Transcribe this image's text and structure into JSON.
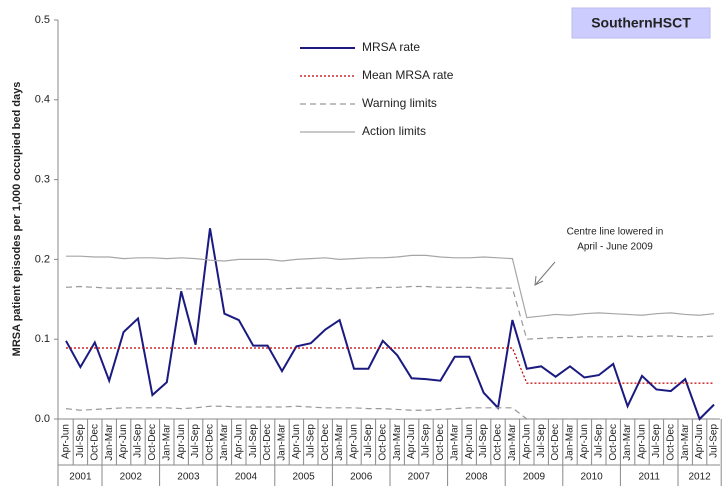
{
  "chart_data": {
    "type": "line",
    "title": "SouthernHSCT",
    "y_label": "MRSA patient episodes per 1,000 occupied bed days",
    "annotation": [
      "Centre line lowered in",
      "April - June 2009"
    ],
    "categories": [
      "Apr-Jun",
      "Jul-Sep",
      "Oct-Dec",
      "Jan-Mar",
      "Apr-Jun",
      "Jul-Sep",
      "Oct-Dec",
      "Jan-Mar",
      "Apr-Jun",
      "Jul-Sep",
      "Oct-Dec",
      "Jan-Mar",
      "Apr-Jun",
      "Jul-Sep",
      "Oct-Dec",
      "Jan-Mar",
      "Apr-Jun",
      "Jul-Sep",
      "Oct-Dec",
      "Jan-Mar",
      "Apr-Jun",
      "Jul-Sep",
      "Oct-Dec",
      "Jan-Mar",
      "Apr-Jun",
      "Jul-Sep",
      "Oct-Dec",
      "Jan-Mar",
      "Apr-Jun",
      "Jul-Sep",
      "Oct-Dec",
      "Jan-Mar",
      "Apr-Jun",
      "Jul-Sep",
      "Oct-Dec",
      "Jan-Mar",
      "Apr-Jun",
      "Jul-Sep",
      "Oct-Dec",
      "Jan-Mar",
      "Apr-Jun",
      "Jul-Sep",
      "Oct-Dec",
      "Jan-Mar",
      "Apr-Jun",
      "Jul-Sep"
    ],
    "category_years": [
      "2001",
      "2001",
      "2001",
      "2002",
      "2002",
      "2002",
      "2002",
      "2003",
      "2003",
      "2003",
      "2003",
      "2004",
      "2004",
      "2004",
      "2004",
      "2005",
      "2005",
      "2005",
      "2005",
      "2006",
      "2006",
      "2006",
      "2006",
      "2007",
      "2007",
      "2007",
      "2007",
      "2008",
      "2008",
      "2008",
      "2008",
      "2009",
      "2009",
      "2009",
      "2009",
      "2010",
      "2010",
      "2010",
      "2010",
      "2011",
      "2011",
      "2011",
      "2011",
      "2012",
      "2012",
      "2012"
    ],
    "series": [
      {
        "name": "MRSA rate",
        "color": "#1a1a80",
        "line_style": "solid",
        "values": [
          0.098,
          0.065,
          0.096,
          0.048,
          0.109,
          0.126,
          0.03,
          0.046,
          0.16,
          0.093,
          0.239,
          0.132,
          0.124,
          0.092,
          0.092,
          0.06,
          0.091,
          0.095,
          0.112,
          0.124,
          0.063,
          0.063,
          0.098,
          0.08,
          0.051,
          0.05,
          0.048,
          0.078,
          0.078,
          0.033,
          0.014,
          0.124,
          0.063,
          0.066,
          0.053,
          0.066,
          0.052,
          0.055,
          0.069,
          0.016,
          0.054,
          0.037,
          0.035,
          0.05,
          0.0,
          0.018
        ]
      },
      {
        "name": "Mean MRSA rate",
        "color": "#c00000",
        "line_style": "dotted",
        "values": [
          0.089,
          0.089,
          0.089,
          0.089,
          0.089,
          0.089,
          0.089,
          0.089,
          0.089,
          0.089,
          0.089,
          0.089,
          0.089,
          0.089,
          0.089,
          0.089,
          0.089,
          0.089,
          0.089,
          0.089,
          0.089,
          0.089,
          0.089,
          0.089,
          0.089,
          0.089,
          0.089,
          0.089,
          0.089,
          0.089,
          0.089,
          0.089,
          0.045,
          0.045,
          0.045,
          0.045,
          0.045,
          0.045,
          0.045,
          0.045,
          0.045,
          0.045,
          0.045,
          0.045,
          0.045,
          0.045
        ]
      },
      {
        "name": "Warning limits",
        "color": "#999999",
        "line_style": "dashed",
        "values": [
          0.165,
          0.166,
          0.165,
          0.164,
          0.164,
          0.164,
          0.164,
          0.164,
          0.163,
          0.163,
          0.163,
          0.163,
          0.163,
          0.163,
          0.163,
          0.163,
          0.164,
          0.164,
          0.164,
          0.163,
          0.164,
          0.164,
          0.165,
          0.165,
          0.166,
          0.166,
          0.165,
          0.165,
          0.165,
          0.164,
          0.164,
          0.164,
          0.1,
          0.101,
          0.102,
          0.102,
          0.103,
          0.103,
          0.103,
          0.104,
          0.103,
          0.104,
          0.104,
          0.103,
          0.103,
          0.104
        ],
        "lower_values": [
          0.013,
          0.011,
          0.012,
          0.013,
          0.014,
          0.014,
          0.014,
          0.014,
          0.013,
          0.014,
          0.016,
          0.016,
          0.015,
          0.015,
          0.015,
          0.015,
          0.016,
          0.015,
          0.014,
          0.014,
          0.014,
          0.013,
          0.013,
          0.012,
          0.011,
          0.011,
          0.012,
          0.013,
          0.014,
          0.014,
          0.014,
          0.014,
          0,
          0,
          0,
          0,
          0,
          0,
          0,
          0,
          0,
          0,
          0,
          0,
          0,
          0
        ]
      },
      {
        "name": "Action limits",
        "color": "#a6a6a6",
        "line_style": "solid",
        "values": [
          0.204,
          0.204,
          0.203,
          0.203,
          0.201,
          0.202,
          0.202,
          0.201,
          0.202,
          0.201,
          0.199,
          0.198,
          0.2,
          0.2,
          0.2,
          0.198,
          0.2,
          0.201,
          0.202,
          0.2,
          0.201,
          0.202,
          0.202,
          0.203,
          0.205,
          0.205,
          0.203,
          0.202,
          0.202,
          0.203,
          0.202,
          0.201,
          0.127,
          0.129,
          0.131,
          0.13,
          0.132,
          0.133,
          0.132,
          0.131,
          0.13,
          0.132,
          0.133,
          0.131,
          0.13,
          0.132
        ]
      }
    ],
    "ylim": [
      0,
      0.5
    ],
    "yticks": [
      {
        "value": 0,
        "label": "0.0"
      },
      0.1,
      0.2,
      0.3,
      0.4,
      0.5
    ],
    "grid": false
  }
}
